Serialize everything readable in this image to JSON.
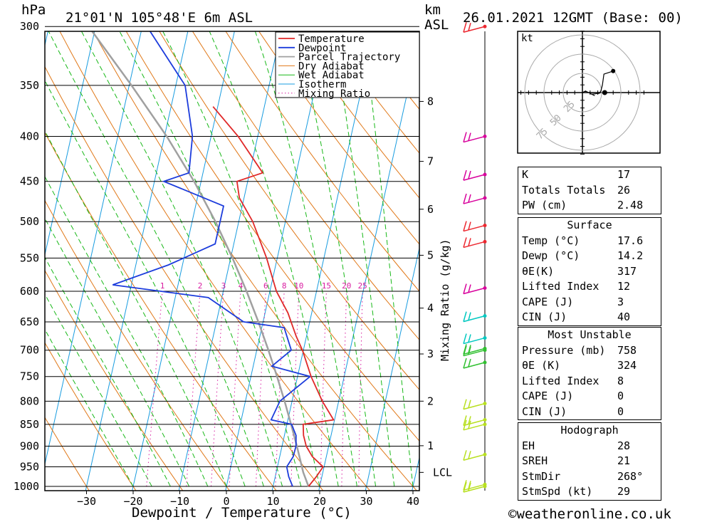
{
  "header": {
    "pressure_unit": "hPa",
    "location": "21°01'N 105°48'E 6m ASL",
    "height_unit_top": "km",
    "height_unit_bottom": "ASL",
    "datetime": "26.01.2021 12GMT (Base: 00)"
  },
  "footer": {
    "copyright": "©weatheronline.co.uk"
  },
  "colors": {
    "temperature": "#e02828",
    "dewpoint": "#1c3cdc",
    "parcel": "#a0a0a0",
    "dry_adiabat": "#e07818",
    "wet_adiabat": "#18b818",
    "isotherm": "#189ce0",
    "mixing_ratio": "#d81ca0",
    "wind_magenta": "#d8009c",
    "wind_red": "#ec2830",
    "wind_cyan": "#00c8c0",
    "wind_green": "#30c030",
    "wind_yellow": "#b8e020"
  },
  "chart_data": {
    "type": "skew-t",
    "title": "21°01'N 105°48'E 6m ASL",
    "xlabel": "Dewpoint / Temperature (°C)",
    "ylabel": "hPa",
    "secondary_ylabel": "Mixing Ratio (g/kg)",
    "xlim": [
      -40,
      40
    ],
    "ylim": [
      1000,
      300
    ],
    "skew_deg_per_decade": 42,
    "pressure_ticks": [
      300,
      350,
      400,
      450,
      500,
      550,
      600,
      650,
      700,
      750,
      800,
      850,
      900,
      950,
      1000
    ],
    "pressure_tick_labels": [
      "300",
      "350",
      "400",
      "450",
      "500",
      "550",
      "600",
      "650",
      "700",
      "750",
      "800",
      "850",
      "900",
      "950",
      "1000"
    ],
    "temperature_ticks": [
      -30,
      -20,
      -10,
      0,
      10,
      20,
      30,
      40
    ],
    "temperature_tick_labels": [
      "−30",
      "−20",
      "−10",
      "0",
      "10",
      "20",
      "30",
      "40"
    ],
    "height_ticks": [
      {
        "label": "8",
        "p": 365
      },
      {
        "label": "7",
        "p": 427
      },
      {
        "label": "6",
        "p": 484
      },
      {
        "label": "5",
        "p": 546
      },
      {
        "label": "4",
        "p": 627
      },
      {
        "label": "3",
        "p": 707
      },
      {
        "label": "2",
        "p": 800
      },
      {
        "label": "1",
        "p": 899
      },
      {
        "label": "LCL",
        "p": 964
      }
    ],
    "mixing_ratio_labels": [
      {
        "label": "1",
        "value": 1
      },
      {
        "label": "2",
        "value": 2
      },
      {
        "label": "3",
        "value": 3
      },
      {
        "label": "4",
        "value": 4
      },
      {
        "label": "6",
        "value": 6
      },
      {
        "label": "8",
        "value": 8
      },
      {
        "label": "10",
        "value": 10
      },
      {
        "label": "15",
        "value": 15
      },
      {
        "label": "20",
        "value": 20
      },
      {
        "label": "25",
        "value": 25
      }
    ],
    "mixing_ratio_label_pressure": 600,
    "legend": [
      "Temperature",
      "Dewpoint",
      "Parcel Trajectory",
      "Dry Adiabat",
      "Wet Adiabat",
      "Isotherm",
      "Mixing Ratio"
    ],
    "series": [
      {
        "name": "Temperature",
        "points": [
          [
            1000,
            17.6
          ],
          [
            975,
            18.8
          ],
          [
            950,
            19.8
          ],
          [
            925,
            17.0
          ],
          [
            900,
            15.2
          ],
          [
            875,
            14.1
          ],
          [
            850,
            13.5
          ],
          [
            840,
            19.8
          ],
          [
            800,
            16.5
          ],
          [
            750,
            12.9
          ],
          [
            700,
            9.8
          ],
          [
            675,
            7.8
          ],
          [
            650,
            6.0
          ],
          [
            635,
            4.9
          ],
          [
            600,
            1.4
          ],
          [
            550,
            -2.3
          ],
          [
            500,
            -7.0
          ],
          [
            470,
            -11.0
          ],
          [
            450,
            -12.3
          ],
          [
            440,
            -7.2
          ],
          [
            400,
            -14.2
          ],
          [
            370,
            -21.0
          ]
        ]
      },
      {
        "name": "Dewpoint",
        "points": [
          [
            1000,
            14.2
          ],
          [
            975,
            12.9
          ],
          [
            950,
            12.0
          ],
          [
            925,
            12.9
          ],
          [
            900,
            13.0
          ],
          [
            875,
            12.5
          ],
          [
            850,
            11.0
          ],
          [
            840,
            6.4
          ],
          [
            800,
            7.4
          ],
          [
            750,
            12.7
          ],
          [
            730,
            4.0
          ],
          [
            700,
            7.4
          ],
          [
            660,
            4.8
          ],
          [
            650,
            -4.2
          ],
          [
            610,
            -12.9
          ],
          [
            590,
            -34.0
          ],
          [
            560,
            -23.0
          ],
          [
            530,
            -14.0
          ],
          [
            480,
            -14.0
          ],
          [
            450,
            -28.0
          ],
          [
            440,
            -23.0
          ],
          [
            400,
            -24.0
          ],
          [
            350,
            -28.0
          ],
          [
            300,
            -39.0
          ]
        ]
      },
      {
        "name": "Parcel Trajectory",
        "points": [
          [
            1000,
            17.6
          ],
          [
            964,
            15.8
          ],
          [
            900,
            13.2
          ],
          [
            850,
            10.9
          ],
          [
            800,
            8.4
          ],
          [
            750,
            5.6
          ],
          [
            700,
            2.5
          ],
          [
            650,
            -1.0
          ],
          [
            600,
            -5.0
          ],
          [
            550,
            -9.6
          ],
          [
            500,
            -15.0
          ],
          [
            450,
            -21.5
          ],
          [
            400,
            -29.5
          ],
          [
            350,
            -39.5
          ],
          [
            300,
            -51.5
          ]
        ]
      }
    ],
    "wind_barbs": [
      {
        "p": 300,
        "color": "red"
      },
      {
        "p": 400,
        "color": "magenta"
      },
      {
        "p": 442,
        "color": "magenta"
      },
      {
        "p": 470,
        "color": "magenta"
      },
      {
        "p": 505,
        "color": "red"
      },
      {
        "p": 527,
        "color": "red"
      },
      {
        "p": 595,
        "color": "magenta"
      },
      {
        "p": 640,
        "color": "cyan"
      },
      {
        "p": 678,
        "color": "cyan"
      },
      {
        "p": 697,
        "color": "green"
      },
      {
        "p": 700,
        "color": "green"
      },
      {
        "p": 723,
        "color": "green"
      },
      {
        "p": 805,
        "color": "yellow"
      },
      {
        "p": 840,
        "color": "yellow"
      },
      {
        "p": 850,
        "color": "yellow"
      },
      {
        "p": 920,
        "color": "yellow"
      },
      {
        "p": 995,
        "color": "yellow"
      },
      {
        "p": 1000,
        "color": "yellow"
      }
    ],
    "hodograph": {
      "unit_label": "kt",
      "ring_labels": [
        "25",
        "50",
        "75"
      ],
      "ring_values": [
        25,
        50,
        75
      ],
      "points": [
        [
          0,
          0
        ],
        [
          4,
          2
        ],
        [
          8,
          0
        ],
        [
          16,
          -4
        ],
        [
          12,
          -2
        ],
        [
          22,
          -1
        ],
        [
          24,
          2
        ],
        [
          26,
          10
        ],
        [
          28,
          24
        ],
        [
          40,
          28
        ]
      ]
    }
  },
  "indices": {
    "general": [
      {
        "label": "K",
        "value": "17"
      },
      {
        "label": "Totals Totals",
        "value": "26"
      },
      {
        "label": "PW (cm)",
        "value": "2.48"
      }
    ],
    "surface": {
      "title": "Surface",
      "rows": [
        {
          "label": "Temp (°C)",
          "value": "17.6"
        },
        {
          "label": "Dewp (°C)",
          "value": "14.2"
        },
        {
          "label": "θE(K)",
          "value": "317"
        },
        {
          "label": "Lifted Index",
          "value": "12"
        },
        {
          "label": "CAPE (J)",
          "value": "3"
        },
        {
          "label": "CIN (J)",
          "value": "40"
        }
      ]
    },
    "most_unstable": {
      "title": "Most Unstable",
      "rows": [
        {
          "label": "Pressure (mb)",
          "value": "758"
        },
        {
          "label": "θE (K)",
          "value": "324"
        },
        {
          "label": "Lifted Index",
          "value": "8"
        },
        {
          "label": "CAPE (J)",
          "value": "0"
        },
        {
          "label": "CIN (J)",
          "value": "0"
        }
      ]
    },
    "hodograph": {
      "title": "Hodograph",
      "rows": [
        {
          "label": "EH",
          "value": "28"
        },
        {
          "label": "SREH",
          "value": "21"
        },
        {
          "label": "StmDir",
          "value": "268°"
        },
        {
          "label": "StmSpd (kt)",
          "value": "29"
        }
      ]
    }
  }
}
